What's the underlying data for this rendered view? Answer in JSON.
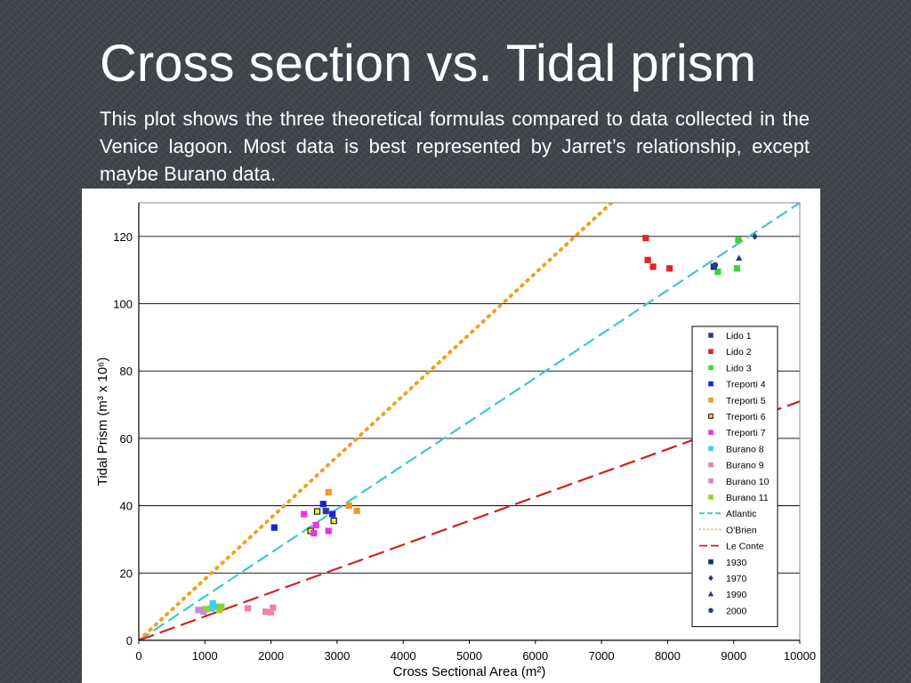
{
  "slide": {
    "title": "Cross section vs. Tidal prism",
    "body": "This plot shows the three theoretical formulas compared to  data collected in the Venice lagoon. Most data is best represented by Jarret’s relationship, except maybe Burano data."
  },
  "chart_data": {
    "type": "scatter",
    "xlabel": "Cross Sectional Area (m²)",
    "ylabel": "Tidal Prism  (m³ x 10⁶)",
    "xlim": [
      0,
      10000
    ],
    "ylim": [
      0,
      130
    ],
    "xticks": [
      "0",
      "1000",
      "2000",
      "3000",
      "4000",
      "5000",
      "6000",
      "7000",
      "8000",
      "9000",
      "10000"
    ],
    "yticks": [
      "0",
      "20",
      "40",
      "60",
      "80",
      "100",
      "120"
    ],
    "grid": "horizontal",
    "legend_position": "right",
    "colors": {
      "Lido 1": "#2b3d8f",
      "Lido 2": "#e8202a",
      "Lido 3": "#3bd63b",
      "Treporti 4": "#1a22d8",
      "Treporti 5": "#f0962c",
      "Treporti 6": "#e8e832",
      "Treporti 7": "#e832e8",
      "Burano 8": "#3ad0e6",
      "Burano 9": "#ee82a8",
      "Burano 10": "#c888dc",
      "Burano 11": "#9ad02c",
      "Atlantic": "#3ac8cc",
      "O'Brien": "#f0a020",
      "Le Conte": "#d42020"
    },
    "lines": [
      {
        "name": "Atlantic",
        "style": "dash",
        "points": [
          [
            0,
            0
          ],
          [
            10000,
            130
          ]
        ]
      },
      {
        "name": "O'Brien",
        "style": "dot",
        "points": [
          [
            0,
            0
          ],
          [
            7150,
            130
          ]
        ]
      },
      {
        "name": "Le Conte",
        "style": "longdash",
        "points": [
          [
            0,
            0
          ],
          [
            10000,
            71
          ]
        ]
      }
    ],
    "series": [
      {
        "name": "Lido 1",
        "marker": "square",
        "points": [
          [
            2830,
            38.4
          ],
          [
            8700,
            111
          ]
        ]
      },
      {
        "name": "Lido 2",
        "marker": "square",
        "points": [
          [
            7670,
            119.5
          ],
          [
            7700,
            113
          ],
          [
            7780,
            111
          ],
          [
            8030,
            110.5
          ]
        ]
      },
      {
        "name": "Lido 3",
        "marker": "square",
        "points": [
          [
            8760,
            109.5
          ],
          [
            9050,
            110.5
          ],
          [
            9070,
            119
          ]
        ]
      },
      {
        "name": "Treporti 4",
        "marker": "square",
        "points": [
          [
            2050,
            33.5
          ],
          [
            2790,
            40.5
          ],
          [
            2930,
            37.5
          ]
        ]
      },
      {
        "name": "Treporti 5",
        "marker": "square",
        "points": [
          [
            2870,
            44
          ],
          [
            3180,
            40
          ],
          [
            3300,
            38.5
          ]
        ]
      },
      {
        "name": "Treporti 6",
        "marker": "square",
        "points": [
          [
            2600,
            32.5
          ],
          [
            2700,
            38.3
          ],
          [
            2950,
            35.5
          ]
        ]
      },
      {
        "name": "Treporti 7",
        "marker": "square",
        "points": [
          [
            2500,
            37.5
          ],
          [
            2680,
            34.2
          ],
          [
            2650,
            31.8
          ],
          [
            2870,
            32.5
          ]
        ]
      },
      {
        "name": "Burano 8",
        "marker": "square",
        "points": [
          [
            1120,
            11
          ],
          [
            1180,
            10
          ],
          [
            1100,
            9.5
          ]
        ]
      },
      {
        "name": "Burano 9",
        "marker": "square",
        "points": [
          [
            1650,
            9.5
          ],
          [
            1920,
            8.5
          ],
          [
            2000,
            8.3
          ],
          [
            2030,
            9.7
          ]
        ]
      },
      {
        "name": "Burano 10",
        "marker": "square",
        "points": [
          [
            900,
            9
          ],
          [
            980,
            8.5
          ],
          [
            1000,
            9.2
          ]
        ]
      },
      {
        "name": "Burano 11",
        "marker": "square",
        "points": [
          [
            1030,
            9.3
          ],
          [
            1220,
            9
          ],
          [
            1250,
            10
          ]
        ]
      }
    ],
    "year_markers": [
      {
        "name": "1930",
        "marker": "square",
        "color": "#1f3070",
        "points": [
          [
            8700,
            111
          ]
        ]
      },
      {
        "name": "1970",
        "marker": "diamond",
        "color": "#2a3a8a",
        "points": [
          [
            9320,
            120
          ]
        ]
      },
      {
        "name": "1990",
        "marker": "triangle",
        "color": "#2a3a8a",
        "points": [
          [
            9080,
            113.5
          ]
        ]
      },
      {
        "name": "2000",
        "marker": "circle",
        "color": "#2a3a8a",
        "points": [
          [
            8720,
            111.5
          ]
        ]
      }
    ],
    "legend": [
      {
        "label": "Lido 1",
        "kind": "square",
        "color": "#2b3d8f"
      },
      {
        "label": "Lido 2",
        "kind": "square",
        "color": "#e8202a"
      },
      {
        "label": "Lido 3",
        "kind": "square",
        "color": "#3bd63b"
      },
      {
        "label": "Treporti 4",
        "kind": "square",
        "color": "#1a22d8"
      },
      {
        "label": "Treporti 5",
        "kind": "square",
        "color": "#f0962c"
      },
      {
        "label": "Treporti 6",
        "kind": "square-open",
        "color": "#e8e832"
      },
      {
        "label": "Treporti 7",
        "kind": "square",
        "color": "#e832e8"
      },
      {
        "label": "Burano 8",
        "kind": "square",
        "color": "#3ad0e6"
      },
      {
        "label": "Burano 9",
        "kind": "square",
        "color": "#ee82a8"
      },
      {
        "label": "Burano 10",
        "kind": "square",
        "color": "#c888dc"
      },
      {
        "label": "Burano 11",
        "kind": "square",
        "color": "#9ad02c"
      },
      {
        "label": "Atlantic",
        "kind": "dash",
        "color": "#3ac8cc"
      },
      {
        "label": "O'Brien",
        "kind": "dot",
        "color": "#f0a020"
      },
      {
        "label": "Le Conte",
        "kind": "longdash",
        "color": "#d42020"
      },
      {
        "label": "1930",
        "kind": "square",
        "color": "#1f3070"
      },
      {
        "label": "1970",
        "kind": "diamond",
        "color": "#2a3a8a"
      },
      {
        "label": "1990",
        "kind": "triangle",
        "color": "#2a3a8a"
      },
      {
        "label": "2000",
        "kind": "circle",
        "color": "#2a3a8a"
      }
    ]
  }
}
